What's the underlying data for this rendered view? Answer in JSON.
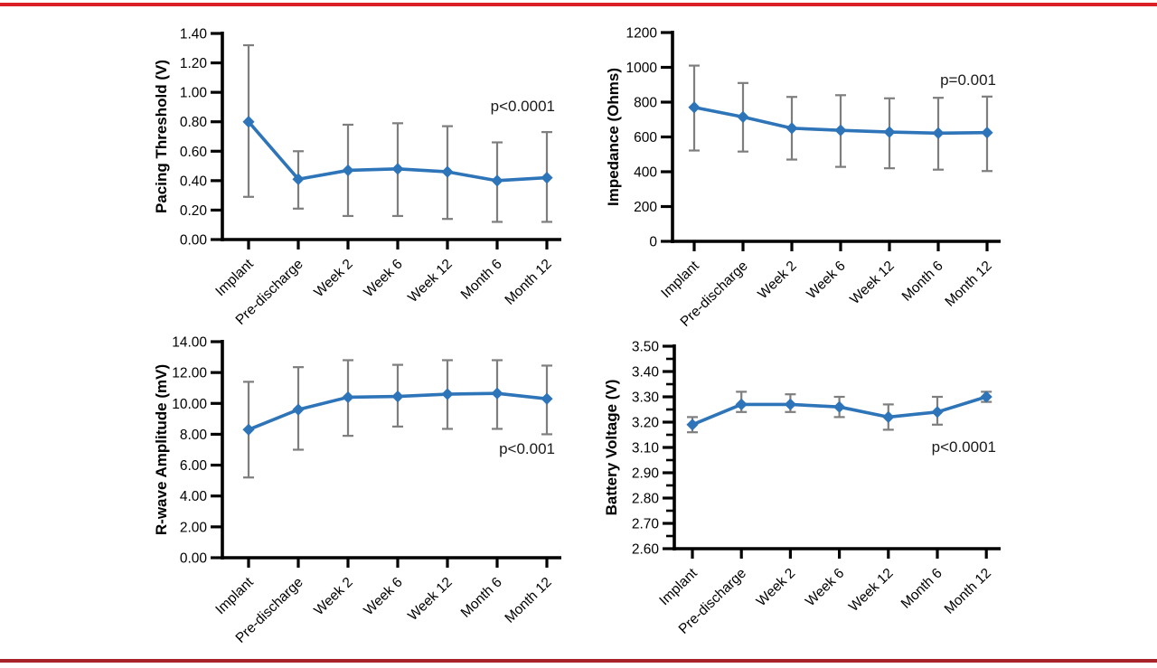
{
  "figure": {
    "top_rule_color": "#DC1F26",
    "bottom_rule_color": "#A8232A",
    "background_color": "#FFFFFF",
    "line_color": "#2E74B8",
    "error_bar_color": "#7E7E7E",
    "axis_color": "#000000",
    "categories": [
      "Implant",
      "Pre-discharge",
      "Week 2",
      "Week 6",
      "Week 12",
      "Month 6",
      "Month 12"
    ]
  },
  "chart_data": [
    {
      "id": "pacing-threshold",
      "type": "line",
      "title": "",
      "ylabel": "Pacing Threshold (V)",
      "xlabel": "",
      "p_label": "p<0.0001",
      "legend": false,
      "grid": false,
      "categories": [
        "Implant",
        "Pre-discharge",
        "Week 2",
        "Week 6",
        "Week 12",
        "Month 6",
        "Month 12"
      ],
      "values": [
        0.8,
        0.41,
        0.47,
        0.48,
        0.46,
        0.4,
        0.42
      ],
      "error_upper": [
        1.32,
        0.6,
        0.78,
        0.79,
        0.77,
        0.66,
        0.73
      ],
      "error_lower": [
        0.29,
        0.21,
        0.16,
        0.16,
        0.14,
        0.12,
        0.12
      ],
      "ylim": [
        0.0,
        1.4
      ],
      "y_tick_labels": [
        "1.40",
        "1.20",
        "1.00",
        "0.80",
        "0.60",
        "0.40",
        "0.20",
        "0.00"
      ],
      "y_tick_values": [
        1.4,
        1.2,
        1.0,
        0.8,
        0.6,
        0.4,
        0.2,
        0.0
      ],
      "marker": "diamond",
      "error_bars": true
    },
    {
      "id": "impedance",
      "type": "line",
      "title": "",
      "ylabel": "Impedance (Ohms)",
      "xlabel": "",
      "p_label": "p=0.001",
      "legend": false,
      "grid": false,
      "categories": [
        "Implant",
        "Pre-discharge",
        "Week 2",
        "Week 6",
        "Week 12",
        "Month 6",
        "Month 12"
      ],
      "values": [
        770,
        715,
        650,
        638,
        628,
        622,
        625
      ],
      "error_upper": [
        1010,
        910,
        830,
        840,
        822,
        825,
        832
      ],
      "error_lower": [
        522,
        516,
        470,
        428,
        420,
        412,
        404
      ],
      "ylim": [
        0,
        1200
      ],
      "y_tick_labels": [
        "1200",
        "1000",
        "800",
        "600",
        "400",
        "200",
        "0"
      ],
      "y_tick_values": [
        1200,
        1000,
        800,
        600,
        400,
        200,
        0
      ],
      "marker": "diamond",
      "error_bars": true
    },
    {
      "id": "r-wave-amplitude",
      "type": "line",
      "title": "",
      "ylabel": "R-wave Amplitude (mV)",
      "xlabel": "",
      "p_label": "p<0.001",
      "legend": false,
      "grid": false,
      "categories": [
        "Implant",
        "Pre-discharge",
        "Week 2",
        "Week 6",
        "Week 12",
        "Month 6",
        "Month 12"
      ],
      "values": [
        8.3,
        9.6,
        10.4,
        10.45,
        10.6,
        10.65,
        10.3
      ],
      "error_upper": [
        11.4,
        12.35,
        12.8,
        12.5,
        12.8,
        12.8,
        12.45
      ],
      "error_lower": [
        5.2,
        7.0,
        7.9,
        8.5,
        8.35,
        8.35,
        8.0
      ],
      "ylim": [
        0.0,
        14.0
      ],
      "y_tick_labels": [
        "14.00",
        "12.00",
        "10.00",
        "8.00",
        "6.00",
        "4.00",
        "2.00",
        "0.00"
      ],
      "y_tick_values": [
        14,
        12,
        10,
        8,
        6,
        4,
        2,
        0
      ],
      "marker": "diamond",
      "error_bars": true
    },
    {
      "id": "battery-voltage",
      "type": "line",
      "title": "",
      "ylabel": "Battery Voltage (V)",
      "xlabel": "",
      "p_label": "p<0.0001",
      "legend": false,
      "grid": false,
      "categories": [
        "Implant",
        "Pre-discharge",
        "Week 2",
        "Week 6",
        "Week 12",
        "Month 6",
        "Month 12"
      ],
      "values": [
        3.19,
        3.27,
        3.27,
        3.26,
        3.22,
        3.24,
        3.3
      ],
      "error_upper": [
        3.22,
        3.32,
        3.31,
        3.3,
        3.27,
        3.3,
        3.32
      ],
      "error_lower": [
        3.16,
        3.24,
        3.24,
        3.22,
        3.17,
        3.19,
        3.28
      ],
      "ylim": [
        2.6,
        3.5
      ],
      "y_tick_labels": [
        "3.50",
        "3.40",
        "3.30",
        "3.20",
        "3.10",
        "2.90",
        "2.80",
        "2.70",
        "2.60"
      ],
      "y_tick_values": [
        3.5,
        3.4,
        3.3,
        3.2,
        3.1,
        2.9,
        2.8,
        2.7,
        2.6
      ],
      "y_axis_note": "label 3.00 is skipped between 3.10 and 2.90 on the printed axis",
      "marker": "diamond",
      "error_bars": true
    }
  ]
}
